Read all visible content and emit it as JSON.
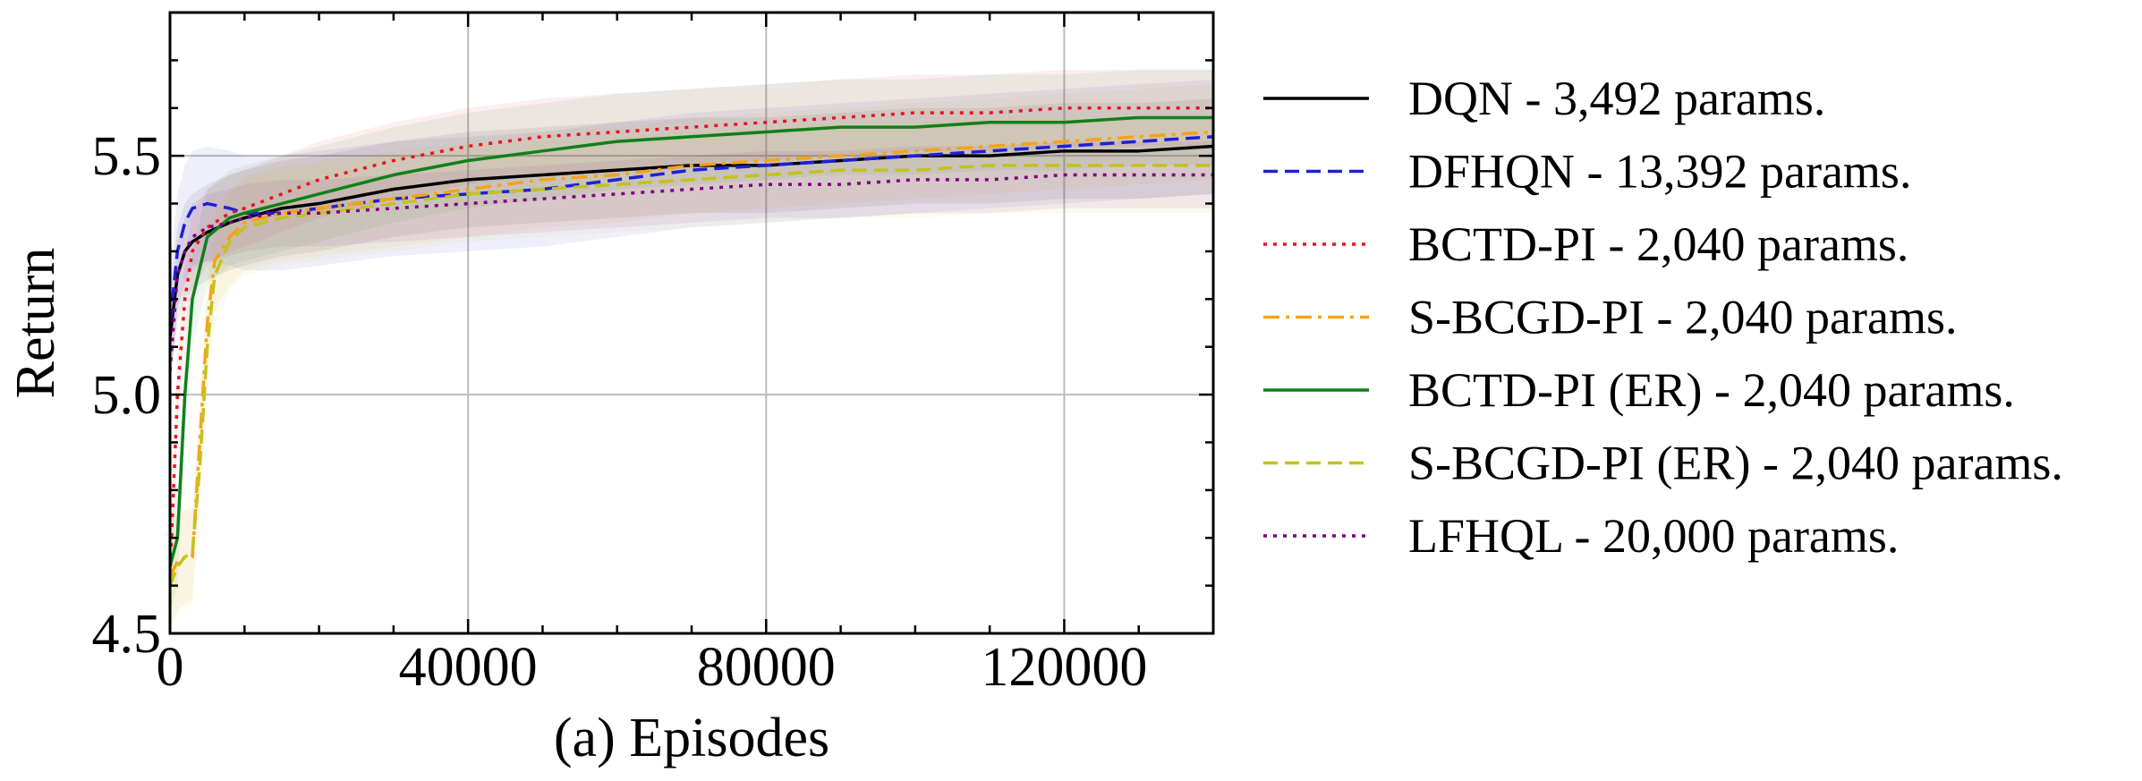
{
  "chart_data": {
    "type": "line",
    "title": "",
    "xlabel": "(a) Episodes",
    "ylabel": "Return",
    "xlim": [
      0,
      140000
    ],
    "ylim": [
      4.5,
      5.8
    ],
    "xticks": [
      0,
      40000,
      80000,
      120000
    ],
    "xtick_labels": [
      "0",
      "40000",
      "80000",
      "120000"
    ],
    "yticks": [
      4.5,
      5.0,
      5.5
    ],
    "ytick_labels": [
      "4.5",
      "5.0",
      "5.5"
    ],
    "grid": true,
    "legend_position": "right",
    "series": [
      {
        "name": "DQN - 3,492 params.",
        "color": "#000000",
        "dash": "solid",
        "band": 0.1,
        "x": [
          0,
          1000,
          2000,
          3000,
          5000,
          8000,
          10000,
          15000,
          20000,
          30000,
          40000,
          50000,
          60000,
          70000,
          80000,
          90000,
          100000,
          110000,
          120000,
          130000,
          140000
        ],
        "y": [
          5.12,
          5.25,
          5.3,
          5.32,
          5.34,
          5.36,
          5.37,
          5.39,
          5.4,
          5.43,
          5.45,
          5.46,
          5.47,
          5.48,
          5.48,
          5.49,
          5.5,
          5.5,
          5.51,
          5.51,
          5.52
        ]
      },
      {
        "name": "DFHQN - 13,392 params.",
        "color": "#1f1fd6",
        "dash": "dashed",
        "band": 0.12,
        "x": [
          0,
          1000,
          2000,
          3000,
          5000,
          8000,
          10000,
          15000,
          20000,
          30000,
          40000,
          50000,
          60000,
          70000,
          80000,
          90000,
          100000,
          110000,
          120000,
          130000,
          140000
        ],
        "y": [
          5.15,
          5.3,
          5.36,
          5.39,
          5.4,
          5.39,
          5.38,
          5.38,
          5.39,
          5.41,
          5.42,
          5.43,
          5.45,
          5.47,
          5.48,
          5.49,
          5.5,
          5.51,
          5.52,
          5.53,
          5.54
        ]
      },
      {
        "name": "BCTD-PI - 2,040 params.",
        "color": "#e8141c",
        "dash": "dotted",
        "band": 0.08,
        "x": [
          0,
          1000,
          2000,
          3000,
          5000,
          8000,
          10000,
          15000,
          20000,
          30000,
          40000,
          50000,
          60000,
          70000,
          80000,
          90000,
          100000,
          110000,
          120000,
          130000,
          140000
        ],
        "y": [
          4.62,
          5.0,
          5.2,
          5.3,
          5.35,
          5.38,
          5.39,
          5.42,
          5.45,
          5.49,
          5.52,
          5.54,
          5.55,
          5.56,
          5.57,
          5.58,
          5.59,
          5.59,
          5.6,
          5.6,
          5.6
        ]
      },
      {
        "name": "S-BCGD-PI - 2,040 params.",
        "color": "#f5a318",
        "dash": "dashdot",
        "band": 0.1,
        "x": [
          0,
          1000,
          2000,
          3000,
          4000,
          5000,
          6000,
          8000,
          10000,
          15000,
          20000,
          30000,
          40000,
          50000,
          60000,
          70000,
          80000,
          90000,
          100000,
          110000,
          120000,
          130000,
          140000
        ],
        "y": [
          4.62,
          4.65,
          4.66,
          4.66,
          4.9,
          5.15,
          5.28,
          5.33,
          5.36,
          5.38,
          5.39,
          5.41,
          5.43,
          5.45,
          5.46,
          5.48,
          5.49,
          5.5,
          5.51,
          5.52,
          5.53,
          5.54,
          5.55
        ]
      },
      {
        "name": "BCTD-PI (ER) - 2,040 params.",
        "color": "#10801a",
        "dash": "solid",
        "band": 0.1,
        "x": [
          0,
          1000,
          2000,
          3000,
          5000,
          8000,
          10000,
          15000,
          20000,
          30000,
          40000,
          50000,
          60000,
          70000,
          80000,
          90000,
          100000,
          110000,
          120000,
          130000,
          140000
        ],
        "y": [
          4.64,
          4.7,
          5.0,
          5.2,
          5.33,
          5.37,
          5.38,
          5.4,
          5.42,
          5.46,
          5.49,
          5.51,
          5.53,
          5.54,
          5.55,
          5.56,
          5.56,
          5.57,
          5.57,
          5.58,
          5.58
        ]
      },
      {
        "name": "S-BCGD-PI (ER) - 2,040 params.",
        "color": "#c4c21c",
        "dash": "dashed",
        "band": 0.1,
        "x": [
          0,
          1000,
          2000,
          3000,
          4000,
          5000,
          6000,
          8000,
          10000,
          15000,
          20000,
          30000,
          40000,
          50000,
          60000,
          70000,
          80000,
          90000,
          100000,
          110000,
          120000,
          130000,
          140000
        ],
        "y": [
          4.6,
          4.64,
          4.66,
          4.67,
          4.85,
          5.1,
          5.25,
          5.32,
          5.35,
          5.37,
          5.38,
          5.4,
          5.42,
          5.43,
          5.44,
          5.45,
          5.46,
          5.47,
          5.47,
          5.48,
          5.48,
          5.48,
          5.48
        ]
      },
      {
        "name": "LFHQL - 20,000 params.",
        "color": "#800080",
        "dash": "dotted",
        "band": 0.07,
        "x": [
          0,
          1000,
          2000,
          3000,
          5000,
          8000,
          10000,
          15000,
          20000,
          30000,
          40000,
          50000,
          60000,
          70000,
          80000,
          90000,
          100000,
          110000,
          120000,
          130000,
          140000
        ],
        "y": [
          5.05,
          5.25,
          5.3,
          5.33,
          5.35,
          5.36,
          5.37,
          5.38,
          5.38,
          5.39,
          5.4,
          5.41,
          5.42,
          5.43,
          5.44,
          5.44,
          5.45,
          5.45,
          5.46,
          5.46,
          5.46
        ]
      }
    ]
  }
}
